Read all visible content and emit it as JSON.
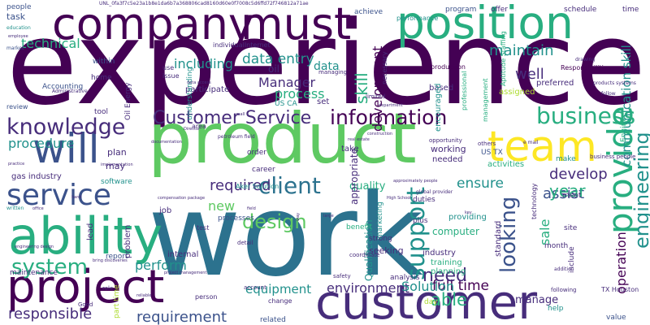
{
  "palette": {
    "dark_purple": "#440154",
    "indigo": "#472d7b",
    "blue": "#3b528b",
    "steel_blue": "#2c728e",
    "teal": "#21918c",
    "sea_green": "#28ae80",
    "green": "#5ec962",
    "lime": "#addc30",
    "yellow": "#fde725",
    "background": "#ffffff"
  },
  "words": [
    {
      "id": "experience",
      "text": "experience",
      "color": "dark_purple"
    },
    {
      "id": "work",
      "text": "work",
      "color": "steel_blue"
    },
    {
      "id": "product",
      "text": "product",
      "color": "green"
    },
    {
      "id": "company",
      "text": "company",
      "color": "dark_purple"
    },
    {
      "id": "must",
      "text": "must",
      "color": "dark_purple"
    },
    {
      "id": "position",
      "text": "position",
      "color": "sea_green"
    },
    {
      "id": "customer",
      "text": "customer",
      "color": "indigo"
    },
    {
      "id": "project",
      "text": "project",
      "color": "dark_purple"
    },
    {
      "id": "ability",
      "text": "ability",
      "color": "sea_green"
    },
    {
      "id": "team",
      "text": "team",
      "color": "yellow"
    },
    {
      "id": "will",
      "text": "will",
      "color": "blue"
    },
    {
      "id": "service",
      "text": "service",
      "color": "blue"
    },
    {
      "id": "knowledge",
      "text": "knowledge",
      "color": "indigo"
    },
    {
      "id": "customer_service",
      "text": "Customer Service",
      "color": "indigo"
    },
    {
      "id": "provide",
      "text": "provide",
      "color": "sea_green"
    },
    {
      "id": "client",
      "text": "client",
      "color": "steel_blue"
    },
    {
      "id": "information",
      "text": "information",
      "color": "dark_purple"
    },
    {
      "id": "system",
      "text": "system",
      "color": "sea_green"
    },
    {
      "id": "support",
      "text": "support",
      "color": "teal"
    },
    {
      "id": "design",
      "text": "design",
      "color": "green"
    },
    {
      "id": "data_entry",
      "text": "data entry",
      "color": "teal"
    },
    {
      "id": "business",
      "text": "business",
      "color": "sea_green"
    },
    {
      "id": "looking",
      "text": "looking",
      "color": "blue"
    },
    {
      "id": "engineering",
      "text": "engineering",
      "color": "teal"
    },
    {
      "id": "technical",
      "text": "technical",
      "color": "sea_green"
    },
    {
      "id": "development",
      "text": "development",
      "color": "dark_purple"
    },
    {
      "id": "skill",
      "text": "skill",
      "color": "sea_green"
    },
    {
      "id": "maintain",
      "text": "maintain",
      "color": "teal"
    },
    {
      "id": "including",
      "text": "including",
      "color": "teal"
    },
    {
      "id": "required",
      "text": "required",
      "color": "indigo"
    },
    {
      "id": "responsible",
      "text": "responsible",
      "color": "indigo"
    },
    {
      "id": "requirement",
      "text": "requirement",
      "color": "blue"
    },
    {
      "id": "equipment",
      "text": "equipment",
      "color": "teal"
    },
    {
      "id": "environment",
      "text": "environment",
      "color": "indigo"
    },
    {
      "id": "procedure",
      "text": "procedure",
      "color": "teal"
    },
    {
      "id": "full_time",
      "text": "full time",
      "color": "dark_purple"
    },
    {
      "id": "need",
      "text": "need",
      "color": "indigo"
    },
    {
      "id": "able",
      "text": "able",
      "color": "sea_green"
    },
    {
      "id": "communication_skill",
      "text": "communication skill",
      "color": "teal"
    },
    {
      "id": "perform",
      "text": "perform",
      "color": "teal"
    },
    {
      "id": "develop",
      "text": "develop",
      "color": "indigo"
    },
    {
      "id": "ensure",
      "text": "ensure",
      "color": "teal"
    },
    {
      "id": "assist",
      "text": "assist",
      "color": "blue"
    },
    {
      "id": "year",
      "text": "year",
      "color": "sea_green"
    },
    {
      "id": "manager",
      "text": "Manager",
      "color": "indigo"
    },
    {
      "id": "process",
      "text": "process",
      "color": "sea_green"
    },
    {
      "id": "new",
      "text": "new",
      "color": "green"
    },
    {
      "id": "quality",
      "text": "quality",
      "color": "sea_green"
    },
    {
      "id": "operation",
      "text": "operation",
      "color": "dark_purple"
    },
    {
      "id": "solution",
      "text": "Solution",
      "color": "teal"
    },
    {
      "id": "manage",
      "text": "manage",
      "color": "indigo"
    },
    {
      "id": "well",
      "text": "well",
      "color": "indigo"
    },
    {
      "id": "sale",
      "text": "sale",
      "color": "sea_green"
    },
    {
      "id": "data",
      "text": "data",
      "color": "teal"
    },
    {
      "id": "oil",
      "text": "oil",
      "color": "indigo"
    },
    {
      "id": "plan",
      "text": "plan",
      "color": "indigo"
    },
    {
      "id": "may",
      "text": "may",
      "color": "indigo"
    },
    {
      "id": "within",
      "text": "within",
      "color": "blue"
    },
    {
      "id": "people",
      "text": "people",
      "color": "blue"
    },
    {
      "id": "task",
      "text": "task",
      "color": "blue"
    },
    {
      "id": "achieve",
      "text": "achieve",
      "color": "blue"
    },
    {
      "id": "program",
      "text": "program",
      "color": "blue"
    },
    {
      "id": "offer",
      "text": "offer",
      "color": "indigo"
    },
    {
      "id": "schedule",
      "text": "schedule",
      "color": "indigo"
    },
    {
      "id": "time",
      "text": "time",
      "color": "indigo"
    },
    {
      "id": "performance",
      "text": "performance",
      "color": "teal"
    },
    {
      "id": "production",
      "text": "production",
      "color": "dark_purple"
    },
    {
      "id": "responsibilities",
      "text": "Responsibilities",
      "color": "dark_purple"
    },
    {
      "id": "education",
      "text": "education",
      "color": "teal"
    },
    {
      "id": "market",
      "text": "market",
      "color": "blue"
    },
    {
      "id": "accounting",
      "text": "Accounting",
      "color": "blue"
    },
    {
      "id": "review",
      "text": "review",
      "color": "blue"
    },
    {
      "id": "gas_industry",
      "text": "gas industry",
      "color": "indigo"
    },
    {
      "id": "written",
      "text": "written",
      "color": "teal"
    },
    {
      "id": "software",
      "text": "software",
      "color": "teal"
    },
    {
      "id": "participate",
      "text": "participate",
      "color": "indigo"
    },
    {
      "id": "us_ca",
      "text": "US CA",
      "color": "teal"
    },
    {
      "id": "set",
      "text": "set",
      "color": "indigo"
    },
    {
      "id": "based",
      "text": "based",
      "color": "indigo"
    },
    {
      "id": "assigned",
      "text": "assigned",
      "color": "lime"
    },
    {
      "id": "preferred",
      "text": "preferred",
      "color": "indigo"
    },
    {
      "id": "encouraged",
      "text": "encouraged",
      "color": "teal"
    },
    {
      "id": "working",
      "text": "working",
      "color": "indigo"
    },
    {
      "id": "needed",
      "text": "needed",
      "color": "indigo"
    },
    {
      "id": "appropriate",
      "text": "appropriate",
      "color": "indigo"
    },
    {
      "id": "us_tx",
      "text": "US TX",
      "color": "blue"
    },
    {
      "id": "activities",
      "text": "activities",
      "color": "sea_green"
    },
    {
      "id": "make",
      "text": "make",
      "color": "teal"
    },
    {
      "id": "technology",
      "text": "technology",
      "color": "indigo"
    },
    {
      "id": "meet",
      "text": "meet",
      "color": "indigo"
    },
    {
      "id": "site",
      "text": "site",
      "color": "indigo"
    },
    {
      "id": "take",
      "text": "take",
      "color": "indigo"
    },
    {
      "id": "career",
      "text": "career",
      "color": "indigo"
    },
    {
      "id": "order",
      "text": "order",
      "color": "indigo"
    },
    {
      "id": "aker_solution",
      "text": "Aker Solution",
      "color": "teal"
    },
    {
      "id": "processes",
      "text": "processes",
      "color": "blue"
    },
    {
      "id": "report",
      "text": "report",
      "color": "blue"
    },
    {
      "id": "maintenance",
      "text": "maintenance",
      "color": "indigo"
    },
    {
      "id": "qualification",
      "text": "Qualification",
      "color": "teal"
    },
    {
      "id": "benefit",
      "text": "benefit",
      "color": "sea_green"
    },
    {
      "id": "strong",
      "text": "strong",
      "color": "indigo"
    },
    {
      "id": "seeking",
      "text": "seeking",
      "color": "indigo"
    },
    {
      "id": "industry",
      "text": "industry",
      "color": "indigo"
    },
    {
      "id": "computer",
      "text": "computer",
      "color": "sea_green"
    },
    {
      "id": "training",
      "text": "training",
      "color": "sea_green"
    },
    {
      "id": "planning",
      "text": "planning",
      "color": "sea_green"
    },
    {
      "id": "analysis",
      "text": "analysis",
      "color": "indigo"
    },
    {
      "id": "providing",
      "text": "providing",
      "color": "teal"
    },
    {
      "id": "standard",
      "text": "standard",
      "color": "indigo"
    },
    {
      "id": "month",
      "text": "month",
      "color": "indigo"
    },
    {
      "id": "include",
      "text": "include",
      "color": "indigo"
    },
    {
      "id": "tx_houston",
      "text": "TX Houston",
      "color": "indigo"
    },
    {
      "id": "value",
      "text": "value",
      "color": "blue"
    },
    {
      "id": "help",
      "text": "help",
      "color": "teal"
    },
    {
      "id": "day",
      "text": "day",
      "color": "lime"
    },
    {
      "id": "related",
      "text": "related",
      "color": "blue"
    },
    {
      "id": "internal",
      "text": "internal",
      "color": "indigo"
    },
    {
      "id": "job",
      "text": "job",
      "color": "indigo"
    },
    {
      "id": "lead",
      "text": "lead",
      "color": "indigo"
    },
    {
      "id": "problem",
      "text": "problem",
      "color": "indigo"
    },
    {
      "id": "test",
      "text": "test",
      "color": "indigo"
    },
    {
      "id": "tool",
      "text": "tool",
      "color": "indigo"
    },
    {
      "id": "home",
      "text": "home",
      "color": "indigo"
    },
    {
      "id": "use",
      "text": "use",
      "color": "indigo"
    },
    {
      "id": "issue",
      "text": "issue",
      "color": "indigo"
    },
    {
      "id": "managing",
      "text": "managing",
      "color": "indigo"
    },
    {
      "id": "individual_internet",
      "text": "individualInternet",
      "color": "indigo"
    },
    {
      "id": "understanding",
      "text": "understanding",
      "color": "teal"
    },
    {
      "id": "oil_energy",
      "text": "Oil Energy",
      "color": "indigo"
    },
    {
      "id": "administrative",
      "text": "Administrative",
      "color": "indigo"
    },
    {
      "id": "engineer",
      "text": "Engineer",
      "color": "sea_green"
    },
    {
      "id": "marketing",
      "text": "marketing",
      "color": "teal"
    },
    {
      "id": "change",
      "text": "change",
      "color": "indigo"
    },
    {
      "id": "person",
      "text": "person",
      "color": "indigo"
    },
    {
      "id": "part_time",
      "text": "part time",
      "color": "lime"
    },
    {
      "id": "plus",
      "text": "plus",
      "color": "indigo"
    },
    {
      "id": "duties",
      "text": "duties",
      "color": "indigo"
    },
    {
      "id": "limited",
      "text": "limited",
      "color": "indigo"
    },
    {
      "id": "necessary",
      "text": "necessary",
      "color": "indigo"
    },
    {
      "id": "professional",
      "text": "professional",
      "color": "sea_green"
    },
    {
      "id": "management",
      "text": "management",
      "color": "sea_green"
    },
    {
      "id": "aptitude_staffing",
      "text": "Aptitude Staffing",
      "color": "sea_green"
    },
    {
      "id": "opportunity",
      "text": "opportunity",
      "color": "indigo"
    },
    {
      "id": "area",
      "text": "area",
      "color": "indigo"
    },
    {
      "id": "good",
      "text": "Good",
      "color": "indigo"
    },
    {
      "id": "account",
      "text": "account",
      "color": "indigo"
    },
    {
      "id": "role",
      "text": "role",
      "color": "indigo"
    },
    {
      "id": "detail",
      "text": "detail",
      "color": "indigo"
    },
    {
      "id": "safety",
      "text": "safety",
      "color": "indigo"
    },
    {
      "id": "coordinate",
      "text": "coordinate",
      "color": "indigo"
    },
    {
      "id": "others",
      "text": "others",
      "color": "indigo"
    },
    {
      "id": "global_provider",
      "text": "global provider",
      "color": "indigo"
    },
    {
      "id": "addition",
      "text": "addition",
      "color": "indigo"
    },
    {
      "id": "following",
      "text": "following",
      "color": "indigo"
    },
    {
      "id": "business_people",
      "text": "business people",
      "color": "indigo"
    },
    {
      "id": "products_systems",
      "text": "products systems",
      "color": "indigo"
    },
    {
      "id": "drawing",
      "text": "drawing",
      "color": "indigo"
    },
    {
      "id": "follow",
      "text": "follow",
      "color": "indigo"
    },
    {
      "id": "email",
      "text": "e mail",
      "color": "indigo"
    },
    {
      "id": "high_school",
      "text": "High School",
      "color": "indigo"
    },
    {
      "id": "approximately_people",
      "text": "approximately people",
      "color": "indigo"
    },
    {
      "id": "real_estate",
      "text": "real estate",
      "color": "indigo"
    },
    {
      "id": "compensation_package",
      "text": "compensation package",
      "color": "indigo"
    },
    {
      "id": "engineering_design",
      "text": "engineering design",
      "color": "indigo"
    },
    {
      "id": "project_management",
      "text": "project management",
      "color": "indigo"
    },
    {
      "id": "bring_discoveries",
      "text": "bring discoveries",
      "color": "indigo"
    },
    {
      "id": "petroleum_field",
      "text": "petroleum field",
      "color": "indigo"
    },
    {
      "id": "director",
      "text": "Director",
      "color": "indigo"
    },
    {
      "id": "practice",
      "text": "practice",
      "color": "indigo"
    },
    {
      "id": "department",
      "text": "department",
      "color": "indigo"
    },
    {
      "id": "construction",
      "text": "construction",
      "color": "indigo"
    },
    {
      "id": "employee",
      "text": "employee",
      "color": "indigo"
    },
    {
      "id": "field",
      "text": "field",
      "color": "indigo"
    },
    {
      "id": "way",
      "text": "way",
      "color": "indigo"
    },
    {
      "id": "small",
      "text": "small",
      "color": "indigo"
    },
    {
      "id": "office",
      "text": "office",
      "color": "indigo"
    },
    {
      "id": "large",
      "text": "large",
      "color": "indigo"
    },
    {
      "id": "hand",
      "text": "hand",
      "color": "indigo"
    },
    {
      "id": "reliable",
      "text": "reliable",
      "color": "indigo"
    },
    {
      "id": "documentation",
      "text": "documentation",
      "color": "indigo"
    },
    {
      "id": "implementation",
      "text": "implementation",
      "color": "indigo"
    },
    {
      "id": "data_access",
      "text": "data access",
      "color": "indigo"
    },
    {
      "id": "key",
      "text": "key",
      "color": "indigo"
    },
    {
      "id": "id_string",
      "text": "UNL_0fa3f7c5e23a1b8e1da6b7a368806cad8160d60e0f7008c5d6ffd72f746812a71ae",
      "color": "indigo"
    }
  ]
}
